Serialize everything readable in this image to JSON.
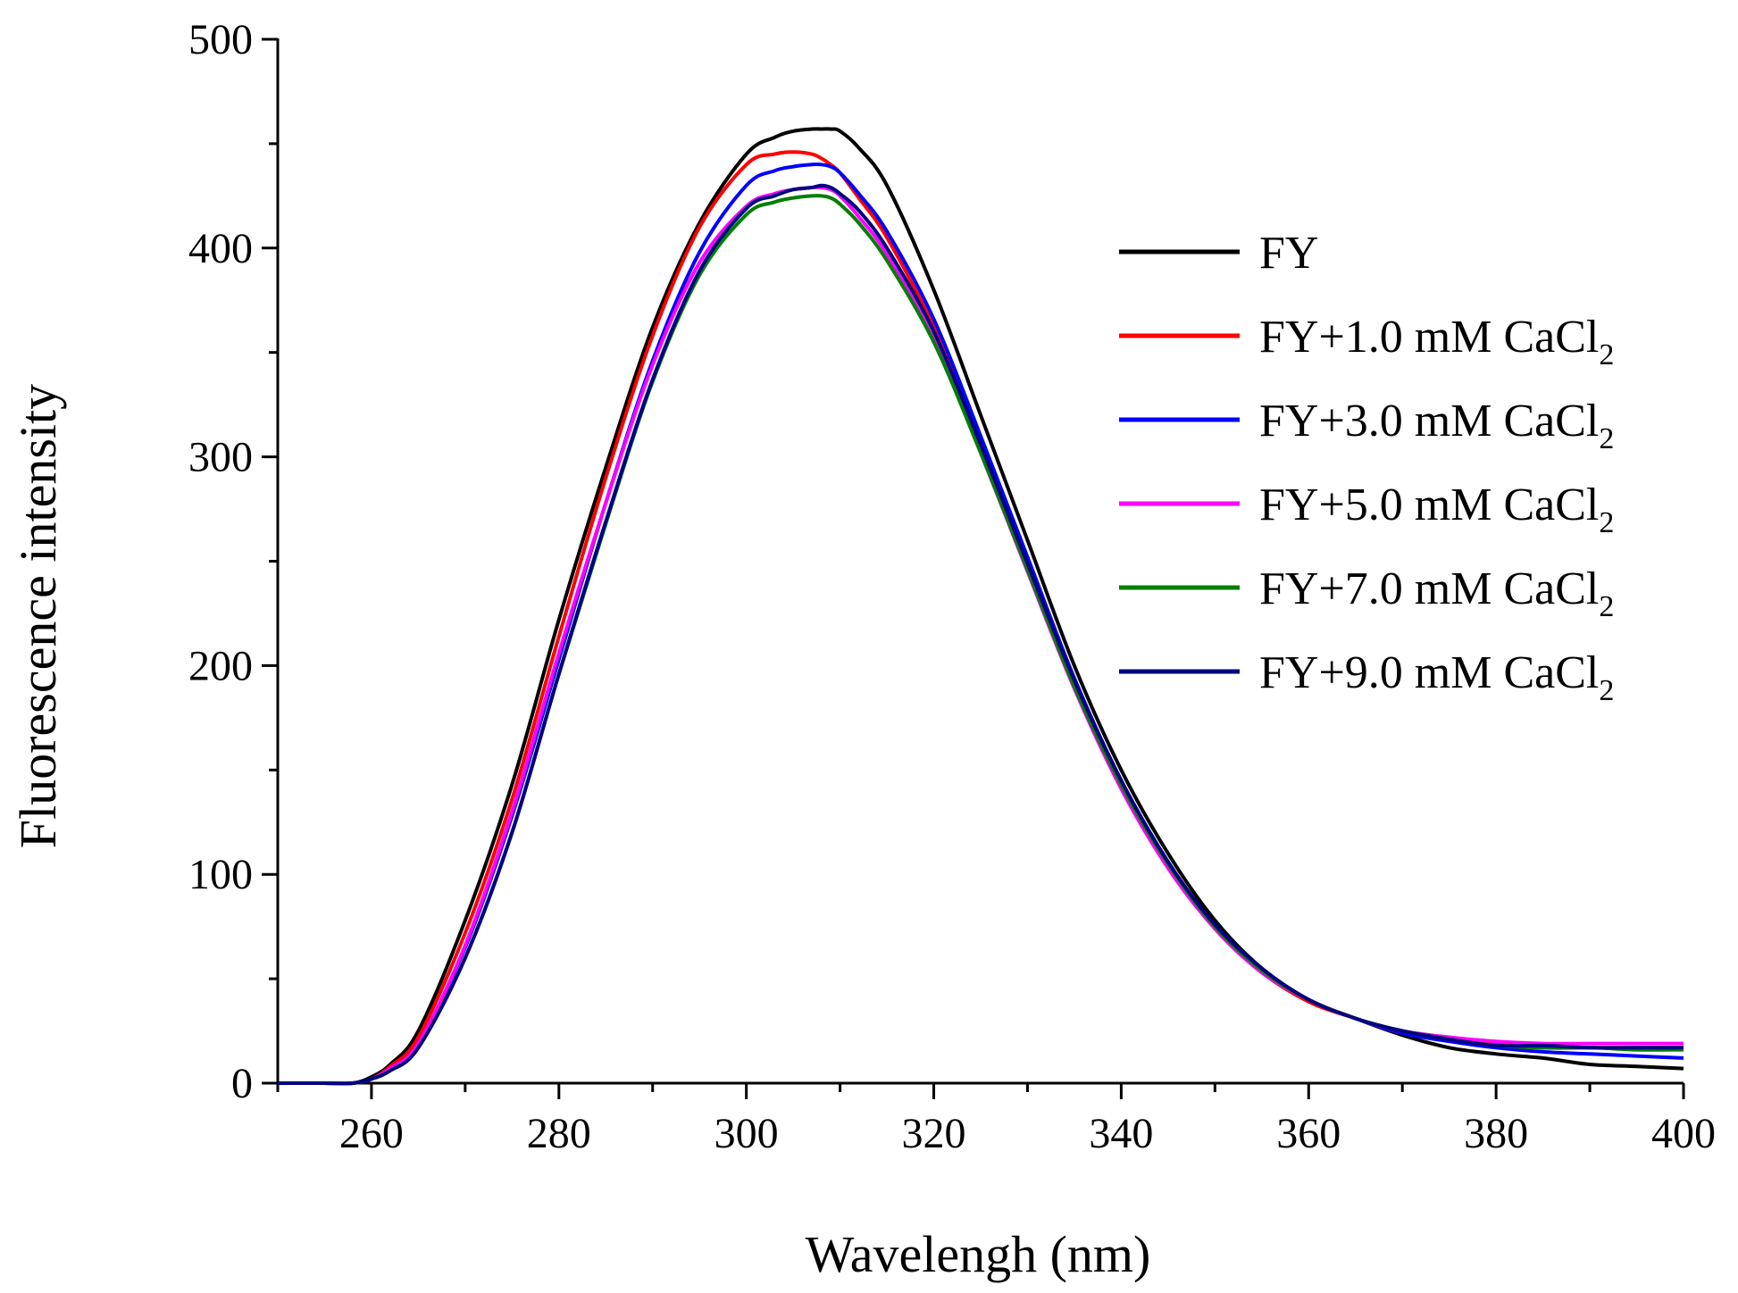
{
  "chart_data": {
    "type": "line",
    "title": "",
    "xlabel": "Wavelengh (nm)",
    "ylabel": "Fluorescence intensity",
    "xlim": [
      250,
      400
    ],
    "ylim": [
      0,
      500
    ],
    "xticks": [
      260,
      280,
      300,
      320,
      340,
      360,
      380,
      400
    ],
    "yticks": [
      0,
      100,
      200,
      300,
      400,
      500
    ],
    "x_tick_labels": [
      "260",
      "280",
      "300",
      "320",
      "340",
      "360",
      "380",
      "400"
    ],
    "y_tick_labels": [
      "0",
      "100",
      "200",
      "300",
      "400",
      "500"
    ],
    "grid": false,
    "legend_position": "right",
    "x": [
      250,
      255,
      258,
      260,
      262,
      265,
      270,
      275,
      280,
      285,
      290,
      295,
      300,
      303,
      305,
      307,
      308,
      309,
      310,
      312,
      315,
      320,
      325,
      330,
      335,
      340,
      345,
      350,
      355,
      360,
      365,
      370,
      375,
      380,
      385,
      390,
      395,
      400
    ],
    "series": [
      {
        "name": "FY",
        "label_main": "FY",
        "label_sub": "",
        "color": "#000000",
        "values": [
          0,
          0,
          0,
          3,
          9,
          25,
          78,
          143,
          222,
          295,
          362,
          412,
          445,
          453,
          456,
          457,
          457,
          457,
          456,
          448,
          430,
          380,
          320,
          260,
          200,
          150,
          110,
          78,
          55,
          40,
          31,
          23,
          17,
          14,
          12,
          9,
          8,
          7
        ]
      },
      {
        "name": "FY+1.0 mM CaCl2",
        "label_main": "FY+1.0 mM CaCl",
        "label_sub": "2",
        "color": "#ff0000",
        "values": [
          0,
          0,
          0,
          2,
          8,
          22,
          72,
          136,
          214,
          290,
          358,
          410,
          440,
          445,
          446,
          445,
          443,
          440,
          436,
          424,
          405,
          362,
          306,
          247,
          190,
          142,
          104,
          74,
          53,
          39,
          31,
          24,
          22,
          19,
          17,
          17,
          17,
          17
        ]
      },
      {
        "name": "FY+3.0 mM CaCl2",
        "label_main": "FY+3.0 mM CaCl",
        "label_sub": "2",
        "color": "#0000ff",
        "values": [
          0,
          0,
          0,
          2,
          7,
          19,
          65,
          128,
          203,
          278,
          346,
          398,
          430,
          437,
          439,
          440,
          440,
          439,
          436,
          426,
          408,
          366,
          310,
          252,
          194,
          145,
          106,
          75,
          54,
          40,
          31,
          24,
          20,
          17,
          15,
          14,
          13,
          12
        ]
      },
      {
        "name": "FY+5.0 mM CaCl2",
        "label_main": "FY+5.0 mM CaCl",
        "label_sub": "2",
        "color": "#ff00ff",
        "values": [
          0,
          0,
          0,
          2,
          7,
          19,
          66,
          130,
          206,
          278,
          344,
          393,
          420,
          426,
          428,
          429,
          429,
          428,
          425,
          415,
          397,
          356,
          302,
          245,
          189,
          141,
          103,
          74,
          53,
          40,
          31,
          25,
          22,
          20,
          19,
          19,
          19,
          19
        ]
      },
      {
        "name": "FY+7.0 mM CaCl2",
        "label_main": "FY+7.0 mM CaCl",
        "label_sub": "2",
        "color": "#007f00",
        "values": [
          0,
          0,
          0,
          2,
          6,
          17,
          60,
          120,
          196,
          268,
          336,
          387,
          416,
          422,
          424,
          425,
          425,
          424,
          421,
          412,
          394,
          355,
          302,
          246,
          190,
          143,
          105,
          75,
          54,
          40,
          31,
          25,
          21,
          18,
          17,
          17,
          16,
          16
        ]
      },
      {
        "name": "FY+9.0 mM CaCl2",
        "label_main": "FY+9.0 mM CaCl",
        "label_sub": "2",
        "color": "#000080",
        "values": [
          0,
          0,
          0,
          2,
          6,
          17,
          60,
          120,
          196,
          269,
          337,
          389,
          419,
          425,
          428,
          429,
          430,
          429,
          426,
          418,
          400,
          360,
          306,
          249,
          193,
          145,
          106,
          76,
          55,
          40,
          31,
          25,
          21,
          18,
          18,
          17,
          17,
          17
        ]
      }
    ]
  }
}
